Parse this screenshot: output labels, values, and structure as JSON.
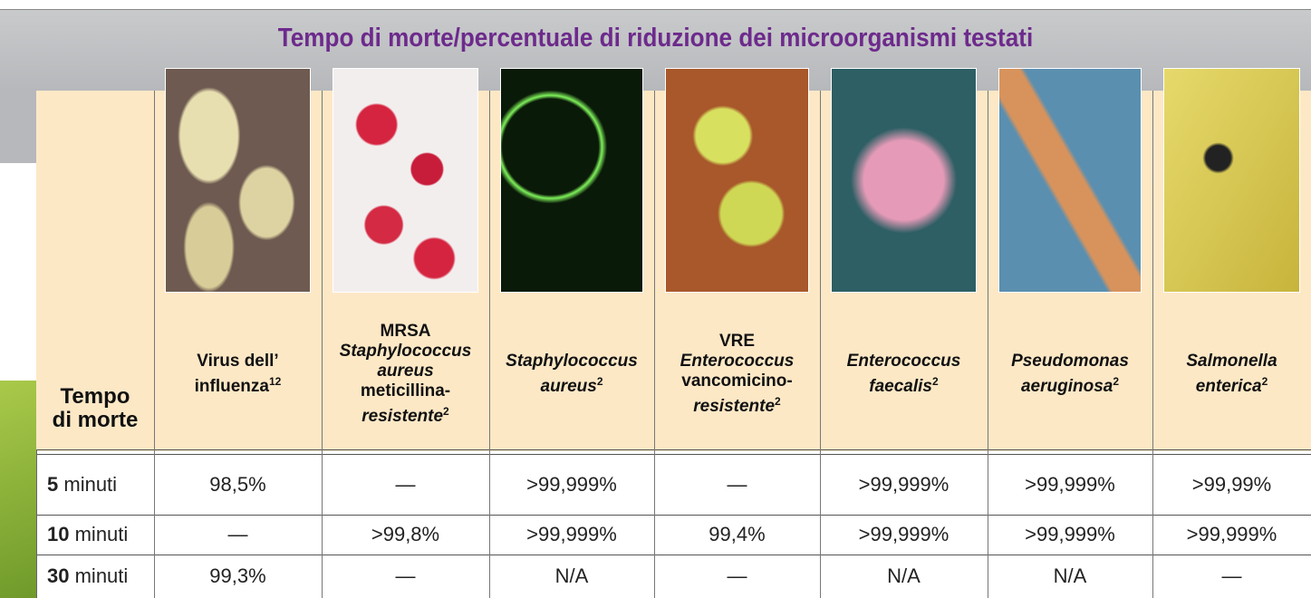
{
  "title": "Tempo di morte/percentuale di riduzione dei microorganismi testati",
  "row_header": [
    "Tempo",
    "di morte"
  ],
  "columns": [
    [
      "Virus dell’",
      "influenza",
      "12"
    ],
    [
      "MRSA",
      "Staphylococcus",
      "aureus",
      "meticillina-",
      "resistente",
      "2"
    ],
    [
      "Staphylococcus",
      "aureus",
      "2"
    ],
    [
      "VRE",
      "Enterococcus",
      "vancomicino-",
      "resistente",
      "2"
    ],
    [
      "Enterococcus",
      "faecalis",
      "2"
    ],
    [
      "Pseudomonas",
      "aeruginosa",
      "2"
    ],
    [
      "Salmonella",
      "enterica",
      "2"
    ]
  ],
  "rows": [
    {
      "time": "5",
      "unit": "minuti",
      "values": [
        "98,5%",
        "—",
        ">99,999%",
        "—",
        ">99,999%",
        ">99,999%",
        ">99,99%"
      ]
    },
    {
      "time": "10",
      "unit": "minuti",
      "values": [
        "—",
        ">99,8%",
        ">99,999%",
        "99,4%",
        ">99,999%",
        ">99,999%",
        ">99,999%"
      ]
    },
    {
      "time": "30",
      "unit": "minuti",
      "values": [
        "99,3%",
        "—",
        "N/A",
        "—",
        "N/A",
        "N/A",
        "—"
      ]
    }
  ]
}
